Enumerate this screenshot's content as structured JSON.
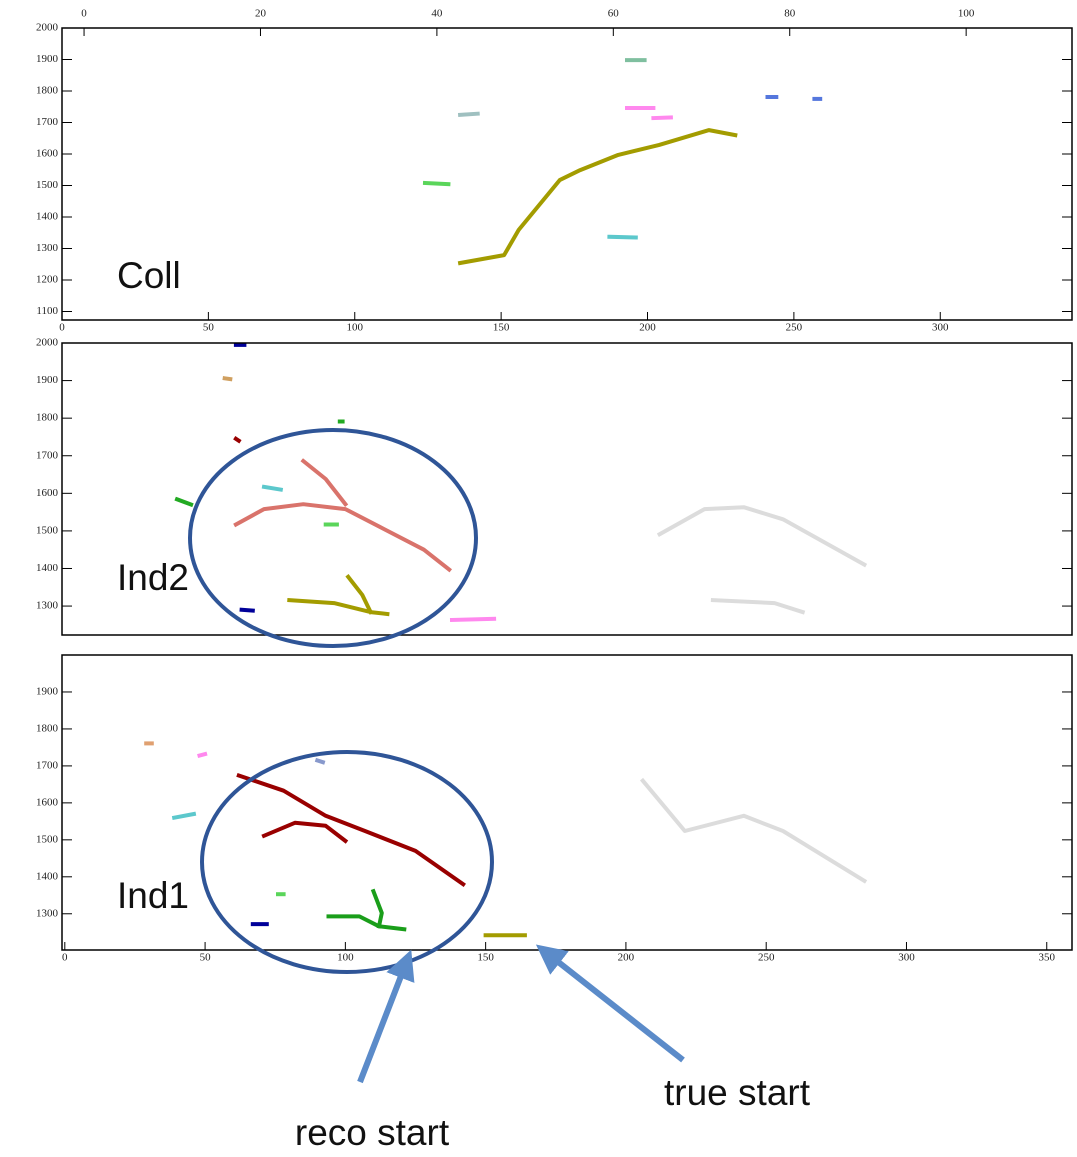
{
  "chart_data": [
    {
      "type": "line",
      "label": "Coll",
      "xlim": [
        0,
        345
      ],
      "xticks": [
        0,
        50,
        100,
        150,
        200,
        250,
        300
      ],
      "x2lim": [
        -2.5,
        112
      ],
      "x2ticks": [
        0,
        20,
        40,
        60,
        80,
        100
      ],
      "ylim": [
        1073,
        2000
      ],
      "yticks": [
        1100,
        1200,
        1300,
        1400,
        1500,
        1600,
        1700,
        1800,
        1900,
        2000
      ],
      "series": [
        {
          "color": "#a39c00",
          "x": [
            136,
            151,
            156,
            163,
            170,
            177,
            190,
            204,
            221,
            230
          ],
          "values": [
            1254,
            1279,
            1359,
            1438,
            1517,
            1549,
            1597,
            1629,
            1676,
            1660
          ]
        },
        {
          "color": "#5ad55a",
          "x": [
            124,
            132
          ],
          "values": [
            1508,
            1504
          ]
        },
        {
          "color": "#5cc8cc",
          "x": [
            187,
            196
          ],
          "values": [
            1337,
            1335
          ]
        },
        {
          "color": "#7fbf9f",
          "x": [
            193,
            199
          ],
          "values": [
            1898,
            1898
          ]
        },
        {
          "color": "#ff88ee",
          "x": [
            193,
            202
          ],
          "values": [
            1746,
            1746
          ]
        },
        {
          "color": "#ff88ee",
          "x": [
            202,
            208
          ],
          "values": [
            1714,
            1716
          ]
        },
        {
          "color": "#9fc0c0",
          "x": [
            136,
            142
          ],
          "values": [
            1724,
            1728
          ]
        },
        {
          "color": "#5577dd",
          "x": [
            241,
            244
          ],
          "values": [
            1781,
            1781
          ]
        },
        {
          "color": "#5577dd",
          "x": [
            257,
            259
          ],
          "values": [
            1775,
            1775
          ]
        }
      ]
    },
    {
      "type": "line",
      "label": "Ind2",
      "xlim": [
        -1,
        359
      ],
      "ylim": [
        1223,
        2000
      ],
      "yticks": [
        1300,
        1400,
        1500,
        1600,
        1700,
        1800,
        1900,
        2000
      ],
      "series": [
        {
          "color": "#dcdcdc",
          "x": [
            212,
            228,
            242,
            256,
            285
          ],
          "values": [
            1491,
            1558,
            1563,
            1531,
            1410
          ]
        },
        {
          "color": "#dcdcdc",
          "x": [
            231,
            253,
            263
          ],
          "values": [
            1316,
            1308,
            1284
          ]
        },
        {
          "color": "#d9736b",
          "x": [
            61,
            71,
            85,
            100,
            114,
            128,
            137
          ],
          "values": [
            1517,
            1558,
            1571,
            1558,
            1504,
            1450,
            1397
          ]
        },
        {
          "color": "#d9736b",
          "x": [
            85,
            93,
            100
          ],
          "values": [
            1686,
            1638,
            1571
          ]
        },
        {
          "color": "#a39c00",
          "x": [
            80,
            96,
            109,
            115
          ],
          "values": [
            1316,
            1308,
            1284,
            1279
          ]
        },
        {
          "color": "#a39c00",
          "x": [
            101,
            106,
            109
          ],
          "values": [
            1378,
            1330,
            1284
          ]
        },
        {
          "color": "#000099",
          "x": [
            61,
            64
          ],
          "values": [
            1995,
            1995
          ]
        },
        {
          "color": "#990000",
          "x": [
            61,
            62
          ],
          "values": [
            1745,
            1740
          ]
        },
        {
          "color": "#22aa22",
          "x": [
            40,
            45
          ],
          "values": [
            1584,
            1570
          ]
        },
        {
          "color": "#5cc8cc",
          "x": [
            71,
            77
          ],
          "values": [
            1617,
            1610
          ]
        },
        {
          "color": "#22aa22",
          "x": [
            98,
            99
          ],
          "values": [
            1791,
            1791
          ]
        },
        {
          "color": "#ff88ee",
          "x": [
            138,
            153
          ],
          "values": [
            1263,
            1266
          ]
        },
        {
          "color": "#000099",
          "x": [
            63,
            67
          ],
          "values": [
            1290,
            1288
          ]
        },
        {
          "color": "#5ad55a",
          "x": [
            93,
            97
          ],
          "values": [
            1517,
            1517
          ]
        },
        {
          "color": "#d0a060",
          "x": [
            57,
            59
          ],
          "values": [
            1906,
            1904
          ]
        }
      ]
    },
    {
      "type": "line",
      "label": "Ind1",
      "xlim": [
        -1,
        359
      ],
      "xticks": [
        0,
        50,
        100,
        150,
        200,
        250,
        300,
        350
      ],
      "ylim": [
        1202,
        2000
      ],
      "yticks": [
        1300,
        1400,
        1500,
        1600,
        1700,
        1800,
        1900
      ],
      "series": [
        {
          "color": "#dcdcdc",
          "x": [
            206,
            221,
            242,
            256,
            285
          ],
          "values": [
            1660,
            1524,
            1565,
            1524,
            1389
          ]
        },
        {
          "color": "#990000",
          "x": [
            62,
            78,
            93,
            107,
            125,
            142
          ],
          "values": [
            1674,
            1633,
            1565,
            1524,
            1470,
            1380
          ]
        },
        {
          "color": "#990000",
          "x": [
            71,
            82,
            93,
            100
          ],
          "values": [
            1511,
            1546,
            1538,
            1497
          ]
        },
        {
          "color": "#1a9e1a",
          "x": [
            94,
            105,
            112,
            121
          ],
          "values": [
            1293,
            1293,
            1266,
            1258
          ]
        },
        {
          "color": "#1a9e1a",
          "x": [
            110,
            113,
            112
          ],
          "values": [
            1361,
            1302,
            1266
          ]
        },
        {
          "color": "#a39c00",
          "x": [
            150,
            164
          ],
          "values": [
            1242,
            1242
          ]
        },
        {
          "color": "#e0a070",
          "x": [
            29,
            31
          ],
          "values": [
            1761,
            1761
          ]
        },
        {
          "color": "#ff88ee",
          "x": [
            48,
            50
          ],
          "values": [
            1728,
            1732
          ]
        },
        {
          "color": "#5cc8cc",
          "x": [
            39,
            46
          ],
          "values": [
            1560,
            1570
          ]
        },
        {
          "color": "#000099",
          "x": [
            67,
            72
          ],
          "values": [
            1272,
            1272
          ]
        },
        {
          "color": "#5ad55a",
          "x": [
            76,
            78
          ],
          "values": [
            1353,
            1353
          ]
        },
        {
          "color": "#8899cc",
          "x": [
            90,
            92
          ],
          "values": [
            1715,
            1710
          ]
        }
      ]
    }
  ],
  "annotations": [
    "reco start",
    "true start"
  ]
}
